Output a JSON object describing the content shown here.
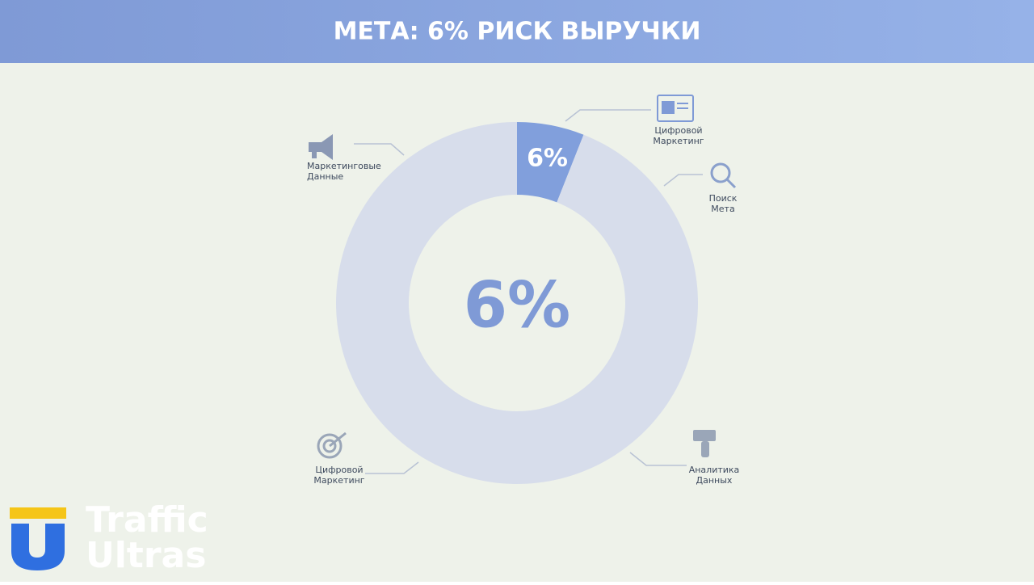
{
  "chart_data": {
    "type": "donut",
    "title": "МЕТА: 6% РИСК ВЫРУЧКИ",
    "categories": [
      null,
      null
    ],
    "values": [
      6,
      94
    ],
    "value_labels": [
      "6%",
      null
    ],
    "colors": [
      "#819fdc",
      "#d7ddeb"
    ],
    "center_label": "6%",
    "annotations": [
      {
        "lines": [
          "Цифровой",
          "Маркетинг"
        ]
      },
      {
        "lines": [
          "Поиск",
          "Мета"
        ]
      },
      {
        "lines": [
          "Аналитика",
          "Данных"
        ]
      },
      {
        "lines": [
          "Цифровой",
          "Маркетинг"
        ]
      },
      {
        "lines": [
          "Маркетинговые",
          "Данные"
        ]
      }
    ]
  },
  "logo": {
    "lines": [
      "Traffic",
      "Ultras"
    ]
  }
}
